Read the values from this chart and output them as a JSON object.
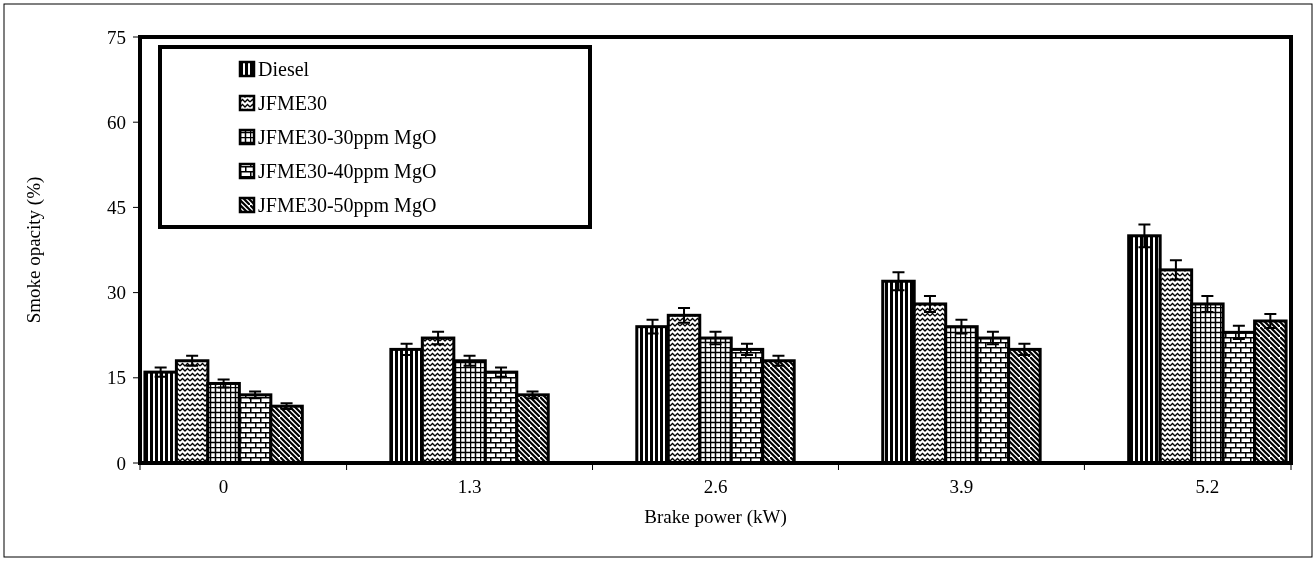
{
  "chart_data": {
    "type": "bar",
    "xlabel": "Brake power (kW)",
    "ylabel": "Smoke opacity (%)",
    "categories": [
      "0",
      "1.3",
      "2.6",
      "3.9",
      "5.2"
    ],
    "series": [
      {
        "name": "Diesel",
        "color": "#000000",
        "values": [
          16,
          20,
          24,
          32,
          40
        ],
        "errors": [
          0.8,
          1,
          1.2,
          1.6,
          2
        ]
      },
      {
        "name": "JFME30",
        "color": "#000000",
        "values": [
          18,
          22,
          26,
          28,
          34
        ],
        "errors": [
          0.9,
          1.1,
          1.3,
          1.4,
          1.7
        ]
      },
      {
        "name": "JFME30-30ppm MgO",
        "color": "#000000",
        "values": [
          14,
          18,
          22,
          24,
          28
        ],
        "errors": [
          0.7,
          0.9,
          1.1,
          1.2,
          1.4
        ]
      },
      {
        "name": "JFME30-40ppm MgO",
        "color": "#000000",
        "values": [
          12,
          16,
          20,
          22,
          23
        ],
        "errors": [
          0.6,
          0.8,
          1,
          1.1,
          1.15
        ]
      },
      {
        "name": "JFME30-50ppm MgO",
        "color": "#000000",
        "values": [
          10,
          12,
          18,
          20,
          25
        ],
        "errors": [
          0.5,
          0.6,
          0.9,
          1,
          1.25
        ]
      }
    ],
    "ylim": [
      0,
      75
    ],
    "yticks": [
      0,
      15,
      30,
      45,
      60,
      75
    ],
    "grid": false,
    "legend": "top left"
  }
}
